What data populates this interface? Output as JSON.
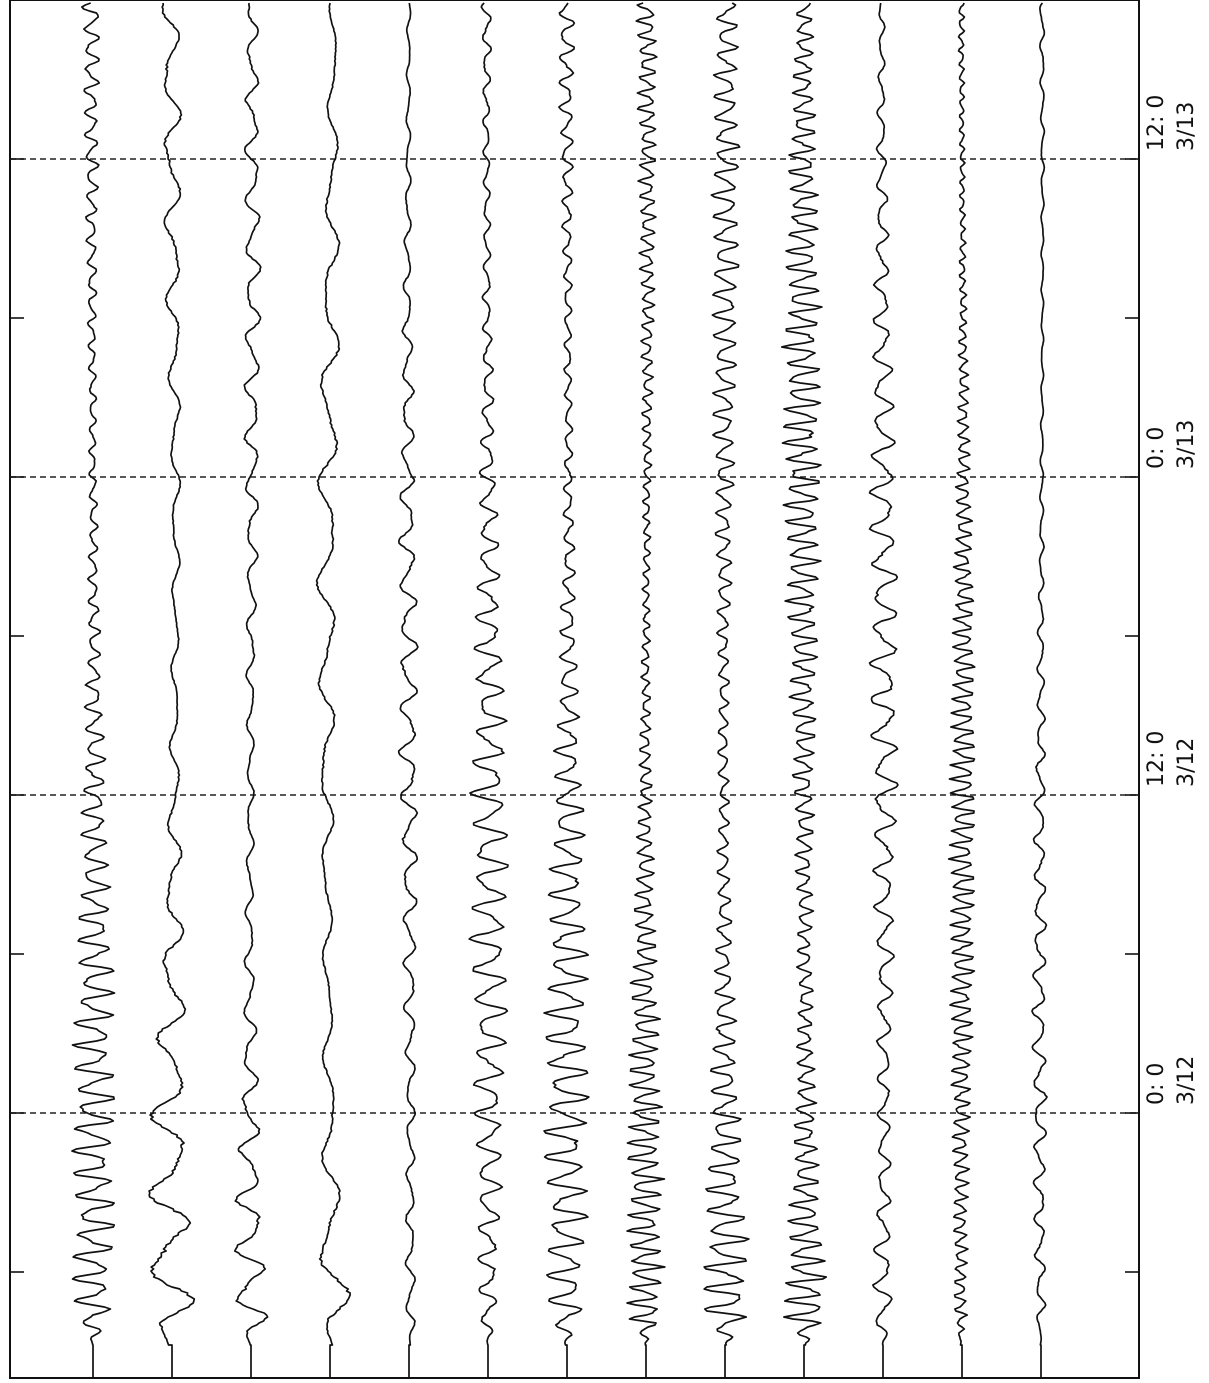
{
  "chart_data": {
    "type": "line",
    "title": "",
    "xlabel": "",
    "ylabel": "",
    "x_axis_orientation": "vertical, time increasing upward",
    "time_labels": [
      {
        "date": "3/12",
        "time": "0: 0"
      },
      {
        "date": "3/12",
        "time": "12: 0"
      },
      {
        "date": "3/13",
        "time": "0: 0"
      },
      {
        "date": "3/13",
        "time": "12: 0"
      }
    ],
    "dashed_gridlines_at": [
      "3/12 0:00",
      "3/12 12:00",
      "3/13 0:00",
      "3/13 12:00"
    ],
    "x_range_hours_relative_to_3_12_00": [
      -10.5,
      49.5
    ],
    "trace_count": 13,
    "traces": [
      {
        "index": 1,
        "relative_amplitude": 0.55,
        "dominant_period_hours": 0.8,
        "decay": "moderate"
      },
      {
        "index": 2,
        "relative_amplitude": 0.5,
        "dominant_period_hours": 2.8,
        "decay": "moderate"
      },
      {
        "index": 3,
        "relative_amplitude": 0.4,
        "dominant_period_hours": 1.8,
        "decay": "moderate"
      },
      {
        "index": 4,
        "relative_amplitude": 0.6,
        "dominant_period_hours": 3.6,
        "decay": "strong"
      },
      {
        "index": 5,
        "relative_amplitude": 0.35,
        "dominant_period_hours": 1.6,
        "decay": "moderate"
      },
      {
        "index": 6,
        "relative_amplitude": 0.6,
        "dominant_period_hours": 1.1,
        "decay": "moderate"
      },
      {
        "index": 7,
        "relative_amplitude": 0.6,
        "dominant_period_hours": 0.9,
        "decay": "moderate"
      },
      {
        "index": 8,
        "relative_amplitude": 0.4,
        "dominant_period_hours": 0.55,
        "decay": "weak"
      },
      {
        "index": 9,
        "relative_amplitude": 0.5,
        "dominant_period_hours": 0.75,
        "decay": "weak"
      },
      {
        "index": 10,
        "relative_amplitude": 0.65,
        "dominant_period_hours": 0.6,
        "decay": "weak"
      },
      {
        "index": 11,
        "relative_amplitude": 0.55,
        "dominant_period_hours": 1.3,
        "decay": "moderate"
      },
      {
        "index": 12,
        "relative_amplitude": 0.45,
        "dominant_period_hours": 0.5,
        "decay": "moderate"
      },
      {
        "index": 13,
        "relative_amplitude": 0.2,
        "dominant_period_hours": 1.3,
        "decay": "moderate"
      }
    ],
    "grid": "dashed horizontal lines at 12-hour marks",
    "legend": "none",
    "line_color": "#111111"
  }
}
